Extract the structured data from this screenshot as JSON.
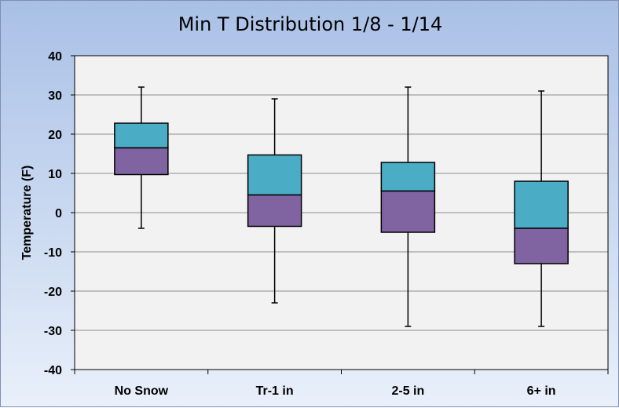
{
  "chart_data": {
    "type": "box",
    "title": "Min T Distribution  1/8 - 1/14",
    "xlabel": "",
    "ylabel": "Temperature (F)",
    "ylim": [
      -40,
      40
    ],
    "yticks": [
      40,
      30,
      20,
      10,
      0,
      -10,
      -20,
      -30,
      -40
    ],
    "grid": true,
    "categories": [
      "No Snow",
      "Tr-1 in",
      "2-5 in",
      "6+ in"
    ],
    "boxes": [
      {
        "min": -4,
        "q1": 9.7,
        "median": 16.5,
        "q3": 22.8,
        "max": 32
      },
      {
        "min": -23,
        "q1": -3.5,
        "median": 4.5,
        "q3": 14.7,
        "max": 29
      },
      {
        "min": -29,
        "q1": -5,
        "median": 5.5,
        "q3": 12.8,
        "max": 32
      },
      {
        "min": -29,
        "q1": -13,
        "median": -4,
        "q3": 8,
        "max": 31
      }
    ],
    "colors": {
      "upper_box": "#4bacc6",
      "lower_box": "#8064a2",
      "plot_bg": "#f2f2f2",
      "gridline": "#8c8c8c"
    }
  }
}
